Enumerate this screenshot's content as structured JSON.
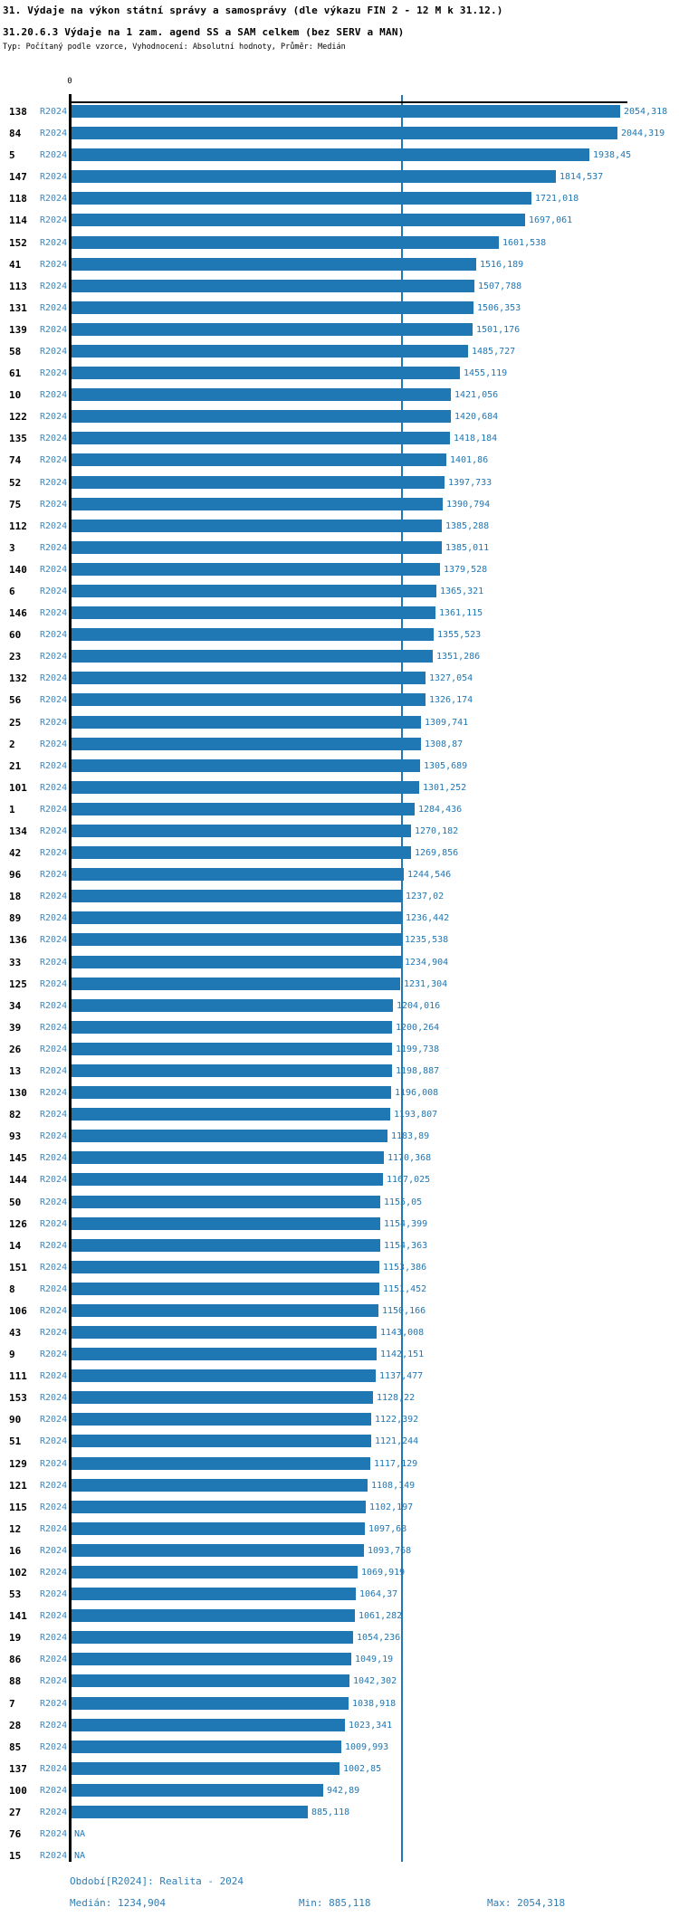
{
  "title": "31. Výdaje na výkon státní správy a samosprávy (dle výkazu FIN 2 - 12 M k 31.12.)",
  "subtitle": "31.20.6.3 Výdaje na 1 zam. agend SS a SAM celkem (bez SERV a MAN)",
  "meta_line": "Typ: Počítaný podle vzorce, Vyhodnocení: Absolutní hodnoty, Průměr: Medián",
  "chart_data": {
    "type": "bar",
    "orientation": "horizontal",
    "series_label": "R2024",
    "axis_zero_label": "0",
    "xlim": [
      0,
      2054.318
    ],
    "xmax": 2054.318,
    "median": 1234.904,
    "median_line": true,
    "grid": false,
    "legend_position": "none",
    "colors": {
      "bar": "#1F77B4",
      "median_line": "#1F77B4",
      "axis": "#000000",
      "period_label": "#3C87BE",
      "value_label": "#1F77B4"
    },
    "na_text": "NA",
    "rows": [
      {
        "id": "138",
        "display": "2054,318",
        "value": 2054.318
      },
      {
        "id": "84",
        "display": "2044,319",
        "value": 2044.319
      },
      {
        "id": "5",
        "display": "1938,45",
        "value": 1938.45
      },
      {
        "id": "147",
        "display": "1814,537",
        "value": 1814.537
      },
      {
        "id": "118",
        "display": "1721,018",
        "value": 1721.018
      },
      {
        "id": "114",
        "display": "1697,061",
        "value": 1697.061
      },
      {
        "id": "152",
        "display": "1601,538",
        "value": 1601.538
      },
      {
        "id": "41",
        "display": "1516,189",
        "value": 1516.189
      },
      {
        "id": "113",
        "display": "1507,788",
        "value": 1507.788
      },
      {
        "id": "131",
        "display": "1506,353",
        "value": 1506.353
      },
      {
        "id": "139",
        "display": "1501,176",
        "value": 1501.176
      },
      {
        "id": "58",
        "display": "1485,727",
        "value": 1485.727
      },
      {
        "id": "61",
        "display": "1455,119",
        "value": 1455.119
      },
      {
        "id": "10",
        "display": "1421,056",
        "value": 1421.056
      },
      {
        "id": "122",
        "display": "1420,684",
        "value": 1420.684
      },
      {
        "id": "135",
        "display": "1418,184",
        "value": 1418.184
      },
      {
        "id": "74",
        "display": "1401,86",
        "value": 1401.86
      },
      {
        "id": "52",
        "display": "1397,733",
        "value": 1397.733
      },
      {
        "id": "75",
        "display": "1390,794",
        "value": 1390.794
      },
      {
        "id": "112",
        "display": "1385,288",
        "value": 1385.288
      },
      {
        "id": "3",
        "display": "1385,011",
        "value": 1385.011
      },
      {
        "id": "140",
        "display": "1379,528",
        "value": 1379.528
      },
      {
        "id": "6",
        "display": "1365,321",
        "value": 1365.321
      },
      {
        "id": "146",
        "display": "1361,115",
        "value": 1361.115
      },
      {
        "id": "60",
        "display": "1355,523",
        "value": 1355.523
      },
      {
        "id": "23",
        "display": "1351,286",
        "value": 1351.286
      },
      {
        "id": "132",
        "display": "1327,054",
        "value": 1327.054
      },
      {
        "id": "56",
        "display": "1326,174",
        "value": 1326.174
      },
      {
        "id": "25",
        "display": "1309,741",
        "value": 1309.741
      },
      {
        "id": "2",
        "display": "1308,87",
        "value": 1308.87
      },
      {
        "id": "21",
        "display": "1305,689",
        "value": 1305.689
      },
      {
        "id": "101",
        "display": "1301,252",
        "value": 1301.252
      },
      {
        "id": "1",
        "display": "1284,436",
        "value": 1284.436
      },
      {
        "id": "134",
        "display": "1270,182",
        "value": 1270.182
      },
      {
        "id": "42",
        "display": "1269,856",
        "value": 1269.856
      },
      {
        "id": "96",
        "display": "1244,546",
        "value": 1244.546
      },
      {
        "id": "18",
        "display": "1237,02",
        "value": 1237.02
      },
      {
        "id": "89",
        "display": "1236,442",
        "value": 1236.442
      },
      {
        "id": "136",
        "display": "1235,538",
        "value": 1235.538
      },
      {
        "id": "33",
        "display": "1234,904",
        "value": 1234.904
      },
      {
        "id": "125",
        "display": "1231,304",
        "value": 1231.304
      },
      {
        "id": "34",
        "display": "1204,016",
        "value": 1204.016
      },
      {
        "id": "39",
        "display": "1200,264",
        "value": 1200.264
      },
      {
        "id": "26",
        "display": "1199,738",
        "value": 1199.738
      },
      {
        "id": "13",
        "display": "1198,887",
        "value": 1198.887
      },
      {
        "id": "130",
        "display": "1196,008",
        "value": 1196.008
      },
      {
        "id": "82",
        "display": "1193,807",
        "value": 1193.807
      },
      {
        "id": "93",
        "display": "1183,89",
        "value": 1183.89
      },
      {
        "id": "145",
        "display": "1170,368",
        "value": 1170.368
      },
      {
        "id": "144",
        "display": "1167,025",
        "value": 1167.025
      },
      {
        "id": "50",
        "display": "1155,05",
        "value": 1155.05
      },
      {
        "id": "126",
        "display": "1154,399",
        "value": 1154.399
      },
      {
        "id": "14",
        "display": "1154,363",
        "value": 1154.363
      },
      {
        "id": "151",
        "display": "1153,386",
        "value": 1153.386
      },
      {
        "id": "8",
        "display": "1151,452",
        "value": 1151.452
      },
      {
        "id": "106",
        "display": "1150,166",
        "value": 1150.166
      },
      {
        "id": "43",
        "display": "1143,008",
        "value": 1143.008
      },
      {
        "id": "9",
        "display": "1142,151",
        "value": 1142.151
      },
      {
        "id": "111",
        "display": "1137,477",
        "value": 1137.477
      },
      {
        "id": "153",
        "display": "1128,22",
        "value": 1128.22
      },
      {
        "id": "90",
        "display": "1122,392",
        "value": 1122.392
      },
      {
        "id": "51",
        "display": "1121,244",
        "value": 1121.244
      },
      {
        "id": "129",
        "display": "1117,129",
        "value": 1117.129
      },
      {
        "id": "121",
        "display": "1108,149",
        "value": 1108.149
      },
      {
        "id": "115",
        "display": "1102,197",
        "value": 1102.197
      },
      {
        "id": "12",
        "display": "1097,68",
        "value": 1097.68
      },
      {
        "id": "16",
        "display": "1093,768",
        "value": 1093.768
      },
      {
        "id": "102",
        "display": "1069,919",
        "value": 1069.919
      },
      {
        "id": "53",
        "display": "1064,37",
        "value": 1064.37
      },
      {
        "id": "141",
        "display": "1061,282",
        "value": 1061.282
      },
      {
        "id": "19",
        "display": "1054,236",
        "value": 1054.236
      },
      {
        "id": "86",
        "display": "1049,19",
        "value": 1049.19
      },
      {
        "id": "88",
        "display": "1042,302",
        "value": 1042.302
      },
      {
        "id": "7",
        "display": "1038,918",
        "value": 1038.918
      },
      {
        "id": "28",
        "display": "1023,341",
        "value": 1023.341
      },
      {
        "id": "85",
        "display": "1009,993",
        "value": 1009.993
      },
      {
        "id": "137",
        "display": "1002,85",
        "value": 1002.85
      },
      {
        "id": "100",
        "display": "942,89",
        "value": 942.89
      },
      {
        "id": "27",
        "display": "885,118",
        "value": 885.118
      },
      {
        "id": "76",
        "display": "NA",
        "value": null
      },
      {
        "id": "15",
        "display": "NA",
        "value": null
      }
    ]
  },
  "footer": {
    "period": "Období[R2024]: Realita - 2024",
    "median": "Medián: 1234,904",
    "min": "Min: 885,118",
    "max": "Max: 2054,318"
  }
}
